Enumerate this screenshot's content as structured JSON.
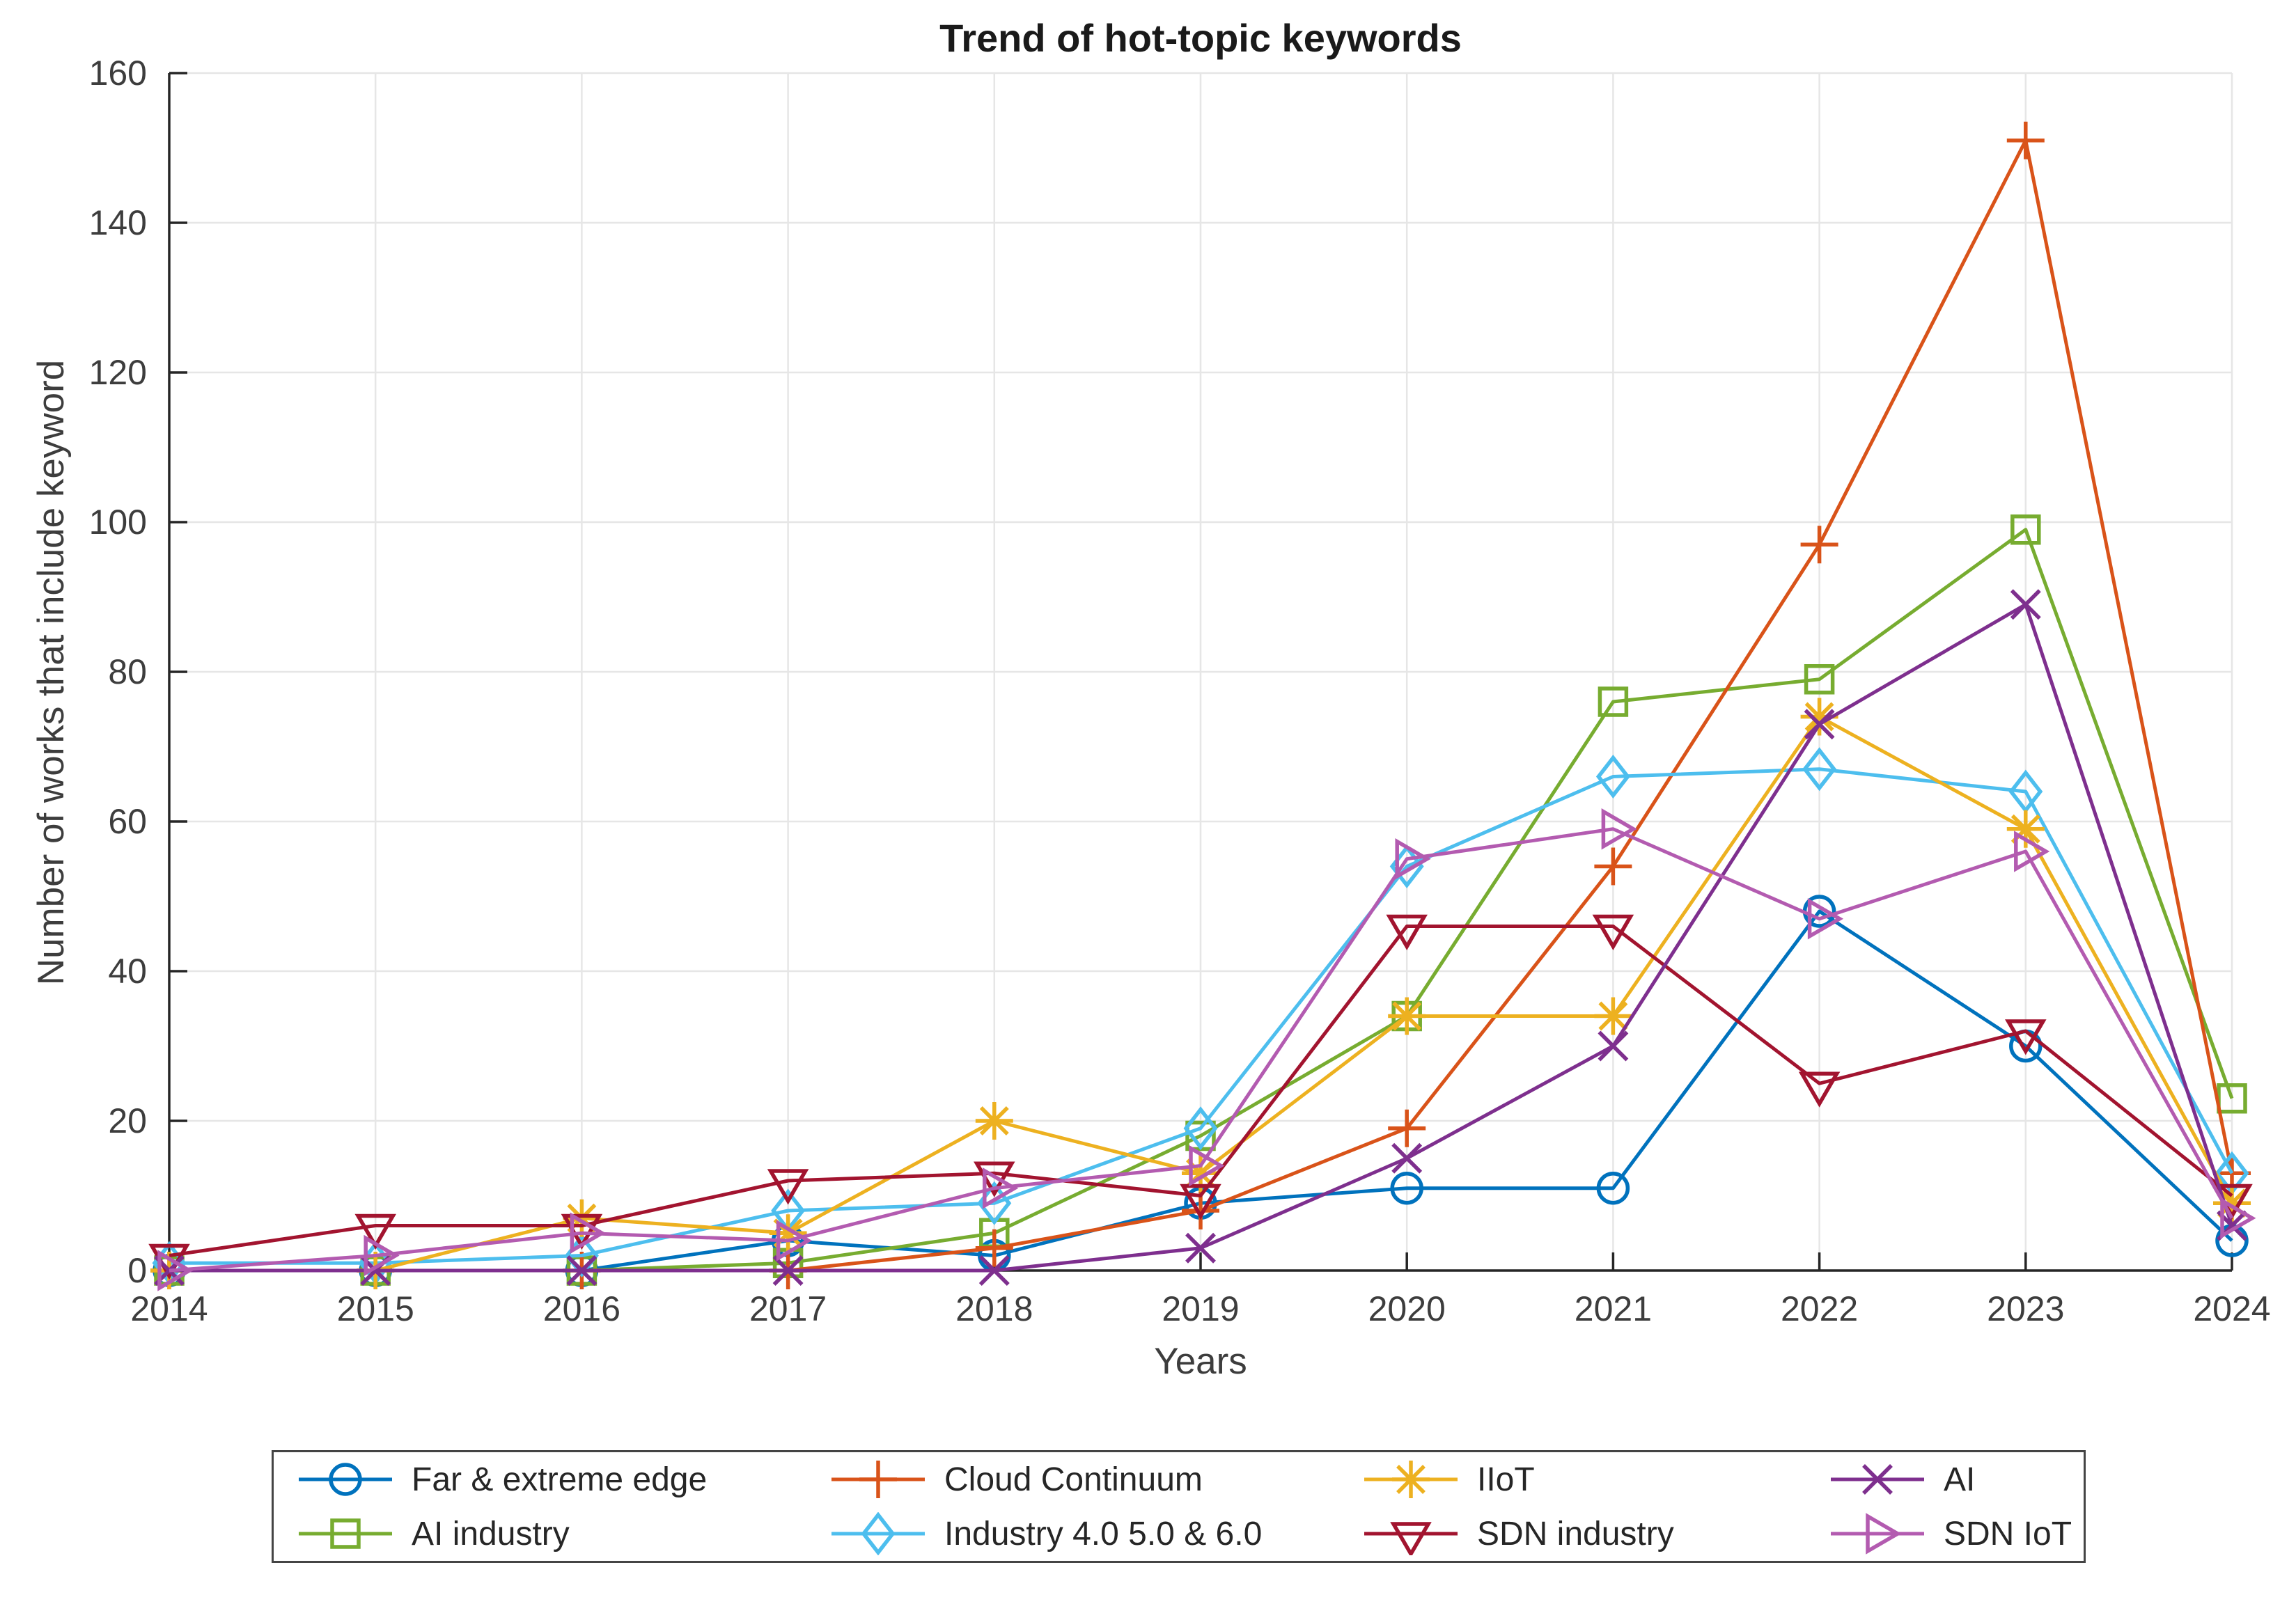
{
  "chart_data": {
    "type": "line",
    "title": "Trend of hot-topic keywords",
    "xlabel": "Years",
    "ylabel": "Number of works that include keyword",
    "x": [
      2014,
      2015,
      2016,
      2017,
      2018,
      2019,
      2020,
      2021,
      2022,
      2023,
      2024
    ],
    "ylim": [
      0,
      160
    ],
    "yticks": [
      0,
      20,
      40,
      60,
      80,
      100,
      120,
      140,
      160
    ],
    "grid": true,
    "legend_position": "below-center",
    "legend_columns": 4,
    "axis_color": "#262626",
    "grid_color": "#e6e6e6",
    "series": [
      {
        "name": "Far & extreme edge",
        "color": "#0072BD",
        "marker": "circle",
        "values": [
          0,
          0,
          0,
          4,
          2,
          9,
          11,
          11,
          48,
          30,
          4
        ]
      },
      {
        "name": "AI industry",
        "color": "#77AC30",
        "marker": "square",
        "values": [
          0,
          0,
          0,
          1,
          5,
          18,
          34,
          76,
          79,
          99,
          23
        ]
      },
      {
        "name": "Cloud Continuum",
        "color": "#D95319",
        "marker": "plus",
        "values": [
          0,
          0,
          0,
          0,
          3,
          8,
          19,
          54,
          97,
          151,
          13
        ]
      },
      {
        "name": "Industry 4.0 5.0 & 6.0",
        "color": "#4DBEEE",
        "marker": "diamond",
        "values": [
          1,
          1,
          2,
          8,
          9,
          19,
          54,
          66,
          67,
          64,
          13
        ]
      },
      {
        "name": "IIoT",
        "color": "#EDB120",
        "marker": "asterisk",
        "values": [
          0,
          0,
          7,
          5,
          20,
          13,
          34,
          34,
          74,
          59,
          9
        ]
      },
      {
        "name": "SDN industry",
        "color": "#A2142F",
        "marker": "triangle-down",
        "values": [
          2,
          6,
          6,
          12,
          13,
          10,
          46,
          46,
          25,
          32,
          10
        ]
      },
      {
        "name": "AI",
        "color": "#7E2F8E",
        "marker": "x",
        "values": [
          0,
          0,
          0,
          0,
          0,
          3,
          15,
          30,
          73,
          89,
          6
        ]
      },
      {
        "name": "SDN IoT",
        "color": "#B35BB0",
        "marker": "triangle-right",
        "values": [
          0,
          2,
          5,
          4,
          11,
          14,
          55,
          59,
          47,
          56,
          7
        ]
      }
    ]
  }
}
